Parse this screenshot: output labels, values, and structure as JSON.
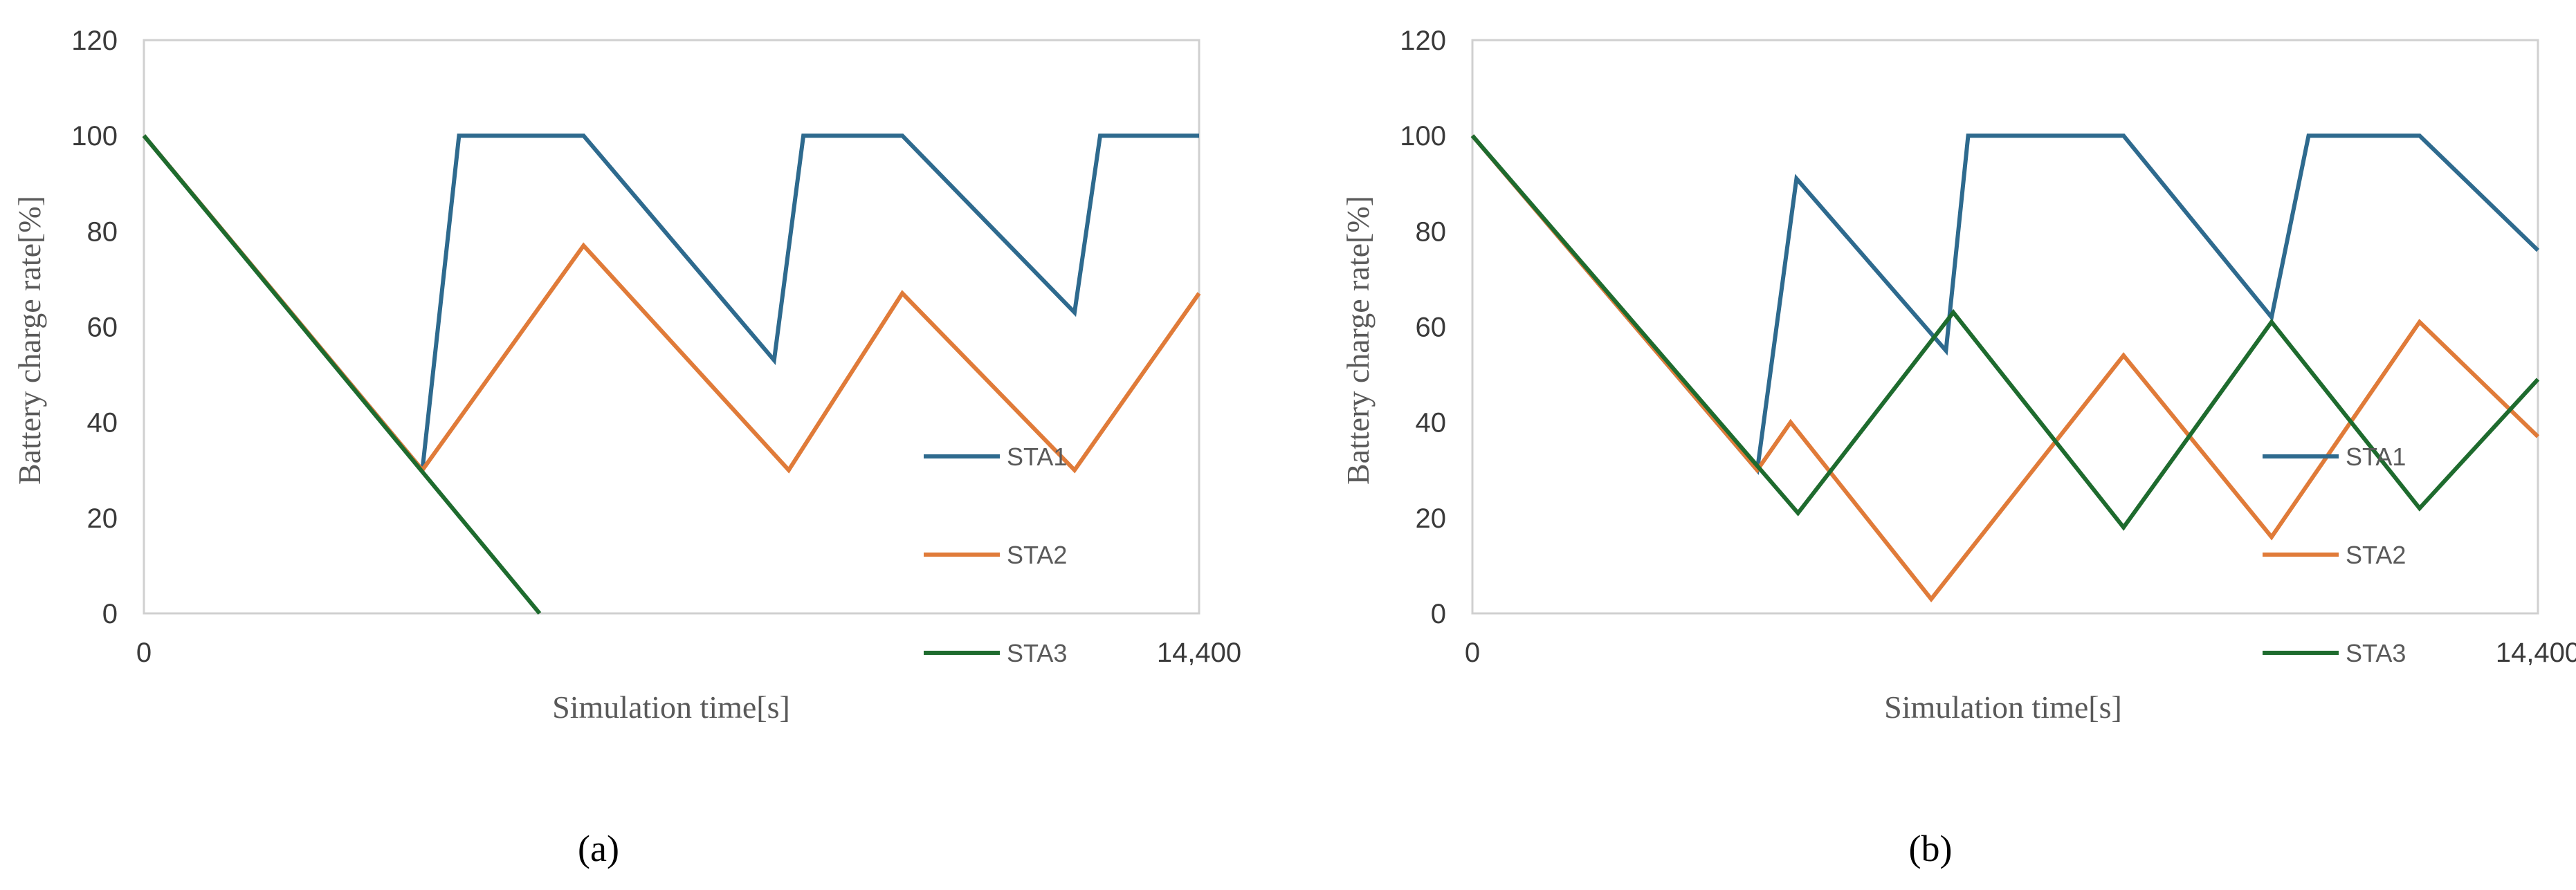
{
  "figure": {
    "subfigure_labels": [
      "(a)",
      "(b)"
    ]
  },
  "chart_data": [
    {
      "type": "line",
      "caption_letter": "a",
      "title": "",
      "xlabel": "Simulation time[s]",
      "ylabel": "Battery charge rate[%]",
      "xlim": [
        0,
        14400
      ],
      "ylim": [
        0,
        120
      ],
      "yticks": [
        "0",
        "20",
        "40",
        "60",
        "80",
        "100",
        "120"
      ],
      "xtick_labels": [
        "0",
        "14,400"
      ],
      "grid": false,
      "legend_position": "bottom-right",
      "series": [
        {
          "name": "STA1",
          "color": "#2E6A8E",
          "points": [
            [
              0,
              100
            ],
            [
              3800,
              30
            ],
            [
              4300,
              100
            ],
            [
              6000,
              100
            ],
            [
              8600,
              53
            ],
            [
              9000,
              100
            ],
            [
              10350,
              100
            ],
            [
              12700,
              63
            ],
            [
              13050,
              100
            ],
            [
              14400,
              100
            ]
          ]
        },
        {
          "name": "STA2",
          "color": "#E07B39",
          "points": [
            [
              0,
              100
            ],
            [
              3800,
              30
            ],
            [
              6000,
              77
            ],
            [
              8800,
              30
            ],
            [
              10350,
              67
            ],
            [
              12700,
              30
            ],
            [
              14400,
              67
            ]
          ]
        },
        {
          "name": "STA3",
          "color": "#1E6B2E",
          "points": [
            [
              0,
              100
            ],
            [
              5400,
              0
            ]
          ]
        }
      ]
    },
    {
      "type": "line",
      "caption_letter": "b",
      "title": "",
      "xlabel": "Simulation time[s]",
      "ylabel": "Battery charge rate[%]",
      "xlim": [
        0,
        14400
      ],
      "ylim": [
        0,
        120
      ],
      "yticks": [
        "0",
        "20",
        "40",
        "60",
        "80",
        "100",
        "120"
      ],
      "xtick_labels": [
        "0",
        "14,400"
      ],
      "grid": false,
      "legend_position": "bottom-right",
      "series": [
        {
          "name": "STA1",
          "color": "#2E6A8E",
          "points": [
            [
              0,
              100
            ],
            [
              3850,
              30
            ],
            [
              4380,
              91
            ],
            [
              6400,
              55
            ],
            [
              6700,
              100
            ],
            [
              8800,
              100
            ],
            [
              10800,
              62
            ],
            [
              11300,
              100
            ],
            [
              12800,
              100
            ],
            [
              14400,
              76
            ]
          ]
        },
        {
          "name": "STA2",
          "color": "#E07B39",
          "points": [
            [
              0,
              100
            ],
            [
              3850,
              30
            ],
            [
              4300,
              40
            ],
            [
              6200,
              3
            ],
            [
              8800,
              54
            ],
            [
              10800,
              16
            ],
            [
              12800,
              61
            ],
            [
              14400,
              37
            ]
          ]
        },
        {
          "name": "STA3",
          "color": "#1E6B2E",
          "points": [
            [
              0,
              100
            ],
            [
              4400,
              21
            ],
            [
              6500,
              63
            ],
            [
              8800,
              18
            ],
            [
              10800,
              61
            ],
            [
              12800,
              22
            ],
            [
              14400,
              49
            ]
          ]
        }
      ]
    }
  ]
}
